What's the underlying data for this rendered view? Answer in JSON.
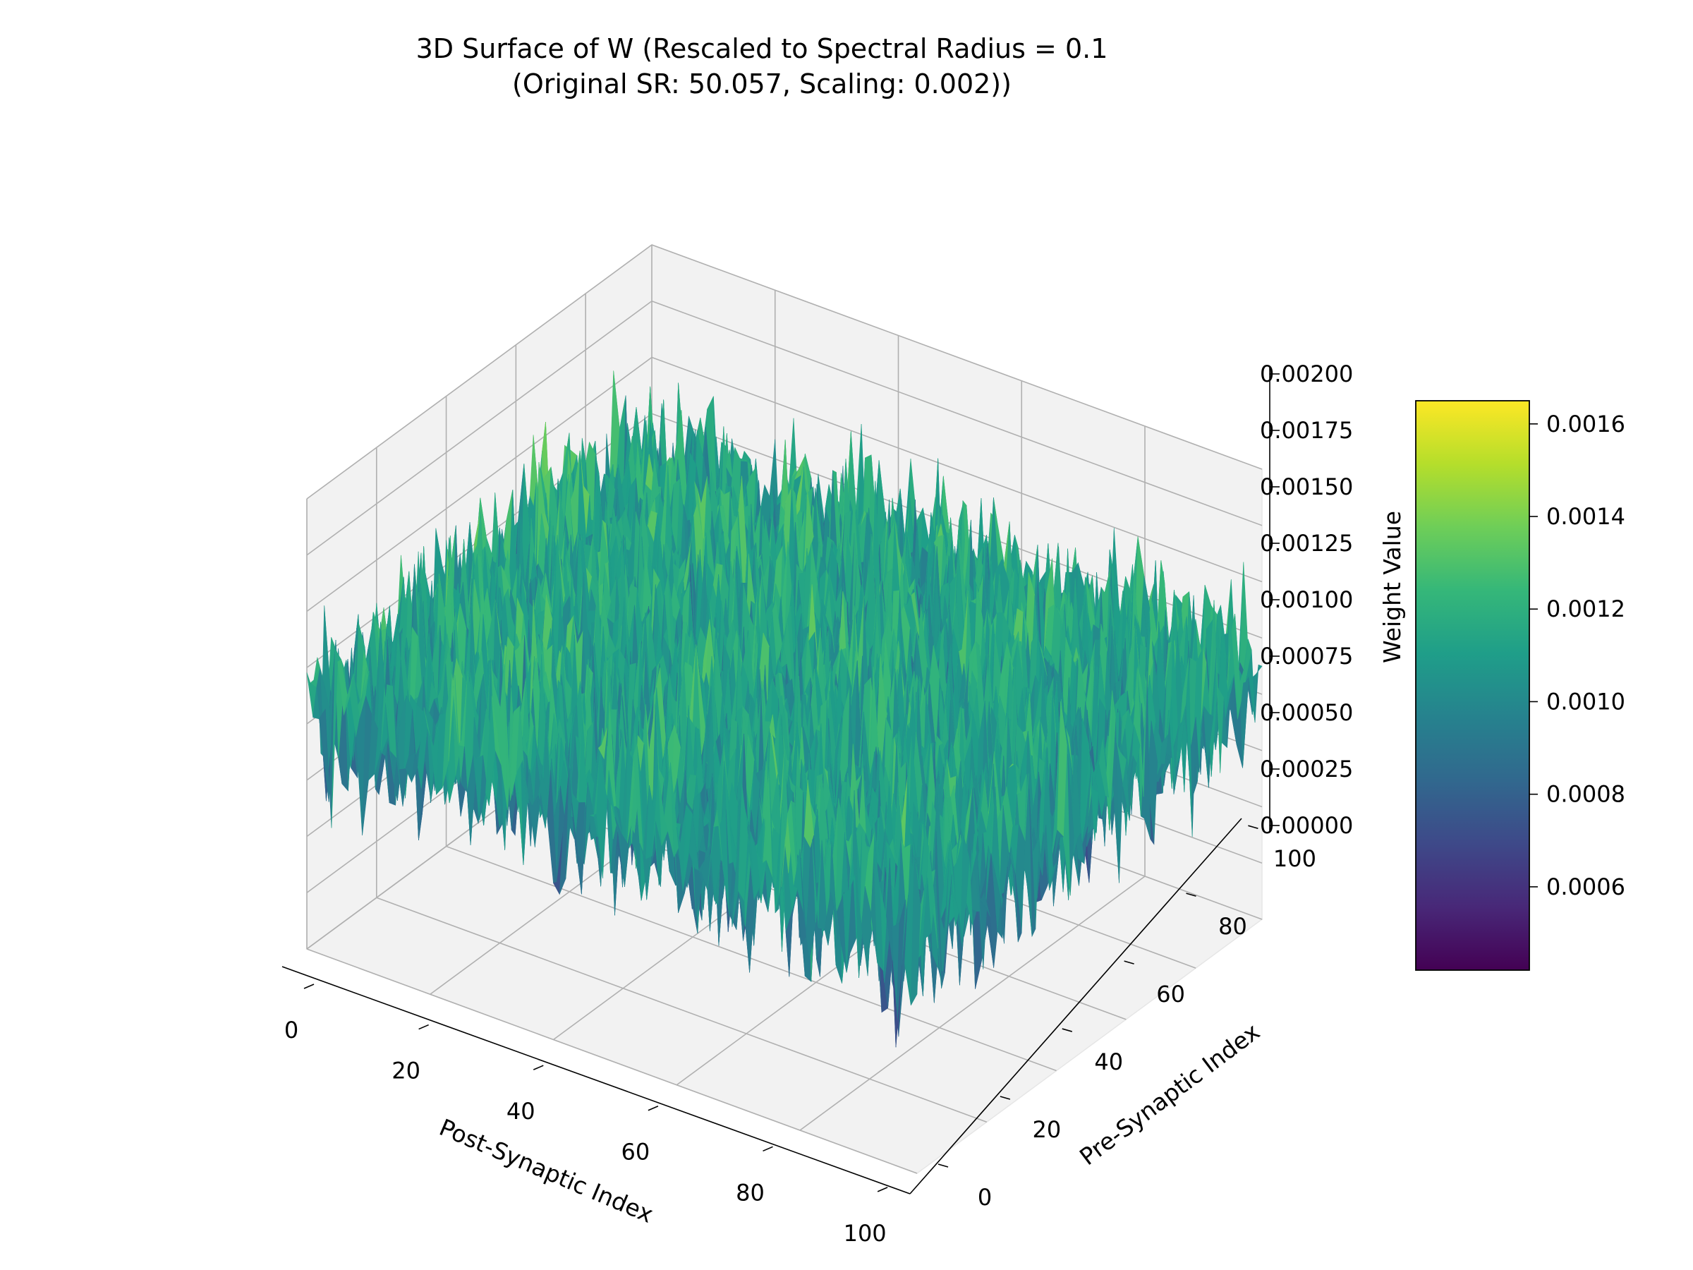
{
  "chart_data": {
    "type": "surface3d",
    "title_lines": [
      "3D Surface of W (Rescaled to Spectral Radius = 0.1",
      "(Original SR: 50.057, Scaling: 0.002))"
    ],
    "xlabel": "Post-Synaptic Index",
    "ylabel": "Pre-Synaptic Index",
    "zlabel": "Weight Value",
    "x_range": [
      0,
      99
    ],
    "y_range": [
      0,
      99
    ],
    "z_range": [
      0,
      0.002
    ],
    "grid_size": [
      100,
      100
    ],
    "x_ticks": [
      {
        "value": 0,
        "label": "0"
      },
      {
        "value": 20,
        "label": "20"
      },
      {
        "value": 40,
        "label": "40"
      },
      {
        "value": 60,
        "label": "60"
      },
      {
        "value": 80,
        "label": "80"
      },
      {
        "value": 100,
        "label": "100"
      }
    ],
    "y_ticks": [
      {
        "value": 0,
        "label": "0"
      },
      {
        "value": 20,
        "label": "20"
      },
      {
        "value": 40,
        "label": "40"
      },
      {
        "value": 60,
        "label": "60"
      },
      {
        "value": 80,
        "label": "80"
      },
      {
        "value": 100,
        "label": "100"
      }
    ],
    "z_ticks": [
      {
        "value": 0.0,
        "label": "0.00000"
      },
      {
        "value": 0.00025,
        "label": "0.00025"
      },
      {
        "value": 0.0005,
        "label": "0.00050"
      },
      {
        "value": 0.00075,
        "label": "0.00075"
      },
      {
        "value": 0.001,
        "label": "0.00100"
      },
      {
        "value": 0.00125,
        "label": "0.00125"
      },
      {
        "value": 0.0015,
        "label": "0.00150"
      },
      {
        "value": 0.00175,
        "label": "0.00175"
      },
      {
        "value": 0.002,
        "label": "0.00200"
      }
    ],
    "colorbar": {
      "colormap": "viridis",
      "range": [
        0.00042,
        0.00165
      ],
      "ticks": [
        {
          "value": 0.0006,
          "label": "0.0006"
        },
        {
          "value": 0.0008,
          "label": "0.0008"
        },
        {
          "value": 0.001,
          "label": "0.0010"
        },
        {
          "value": 0.0012,
          "label": "0.0012"
        },
        {
          "value": 0.0014,
          "label": "0.0014"
        },
        {
          "value": 0.0016,
          "label": "0.0016"
        }
      ]
    },
    "value_distribution": {
      "min": 0.00042,
      "mean": 0.00105,
      "max": 0.00165
    },
    "colors": {
      "pane_fill": "#f2f2f2",
      "pane_stroke": "#e6e6e6",
      "grid": "#b0b0b0",
      "viridis_stops": [
        "#440154",
        "#482878",
        "#3e4989",
        "#31688e",
        "#26828e",
        "#1f9e89",
        "#35b779",
        "#6ece58",
        "#b5de2b",
        "#fde725"
      ]
    }
  }
}
